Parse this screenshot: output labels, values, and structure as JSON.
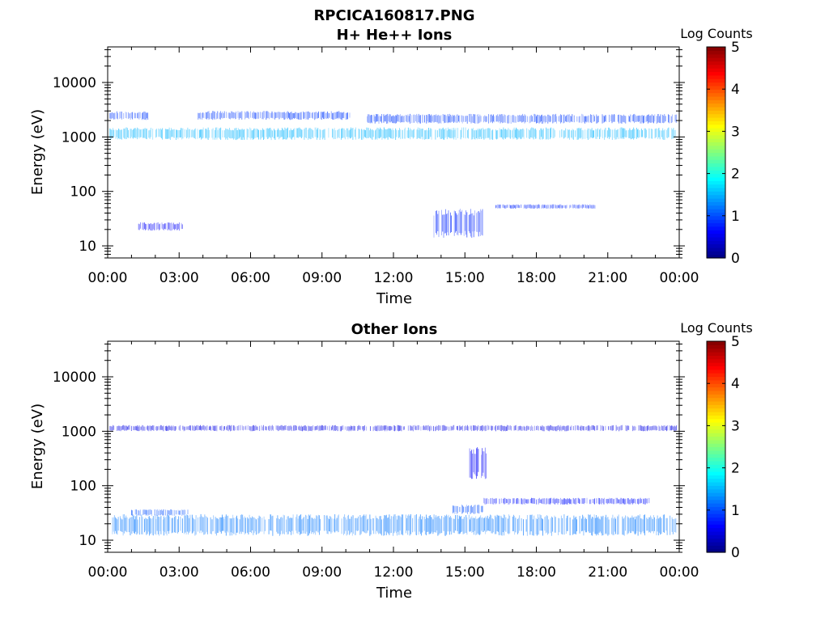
{
  "figure": {
    "title": "RPCICA160817.PNG",
    "background": "#ffffff"
  },
  "chart_data": [
    {
      "type": "heatmap",
      "title": "H+ He++ Ions",
      "xlabel": "Time",
      "ylabel": "Energy (eV)",
      "xticks": [
        "00:00",
        "03:00",
        "06:00",
        "09:00",
        "12:00",
        "15:00",
        "18:00",
        "21:00",
        "00:00"
      ],
      "xlim_hours": [
        0,
        24
      ],
      "yscale": "log",
      "ylim": [
        6,
        45000
      ],
      "yticks": [
        10,
        100,
        1000,
        10000
      ],
      "ytick_labels": [
        "10",
        "100",
        "1000",
        "10000"
      ],
      "colorbar": {
        "label": "Log Counts",
        "range": [
          0,
          5
        ],
        "ticks": [
          "0",
          "1",
          "2",
          "3",
          "4",
          "5"
        ]
      },
      "bands": [
        {
          "hours": [
            0.1,
            23.9
          ],
          "energy_eV": [
            880,
            1500
          ],
          "log_counts": 1.5
        },
        {
          "hours": [
            0.1,
            1.7
          ],
          "energy_eV": [
            2050,
            2950
          ],
          "log_counts": 0.9
        },
        {
          "hours": [
            3.8,
            10.2
          ],
          "energy_eV": [
            2050,
            3000
          ],
          "log_counts": 0.9
        },
        {
          "hours": [
            10.9,
            23.9
          ],
          "energy_eV": [
            1750,
            2650
          ],
          "log_counts": 0.9
        },
        {
          "hours": [
            1.3,
            3.2
          ],
          "energy_eV": [
            19,
            27
          ],
          "log_counts": 0.6
        },
        {
          "hours": [
            13.7,
            15.8
          ],
          "energy_eV": [
            14,
            48
          ],
          "log_counts": 0.8
        },
        {
          "hours": [
            16.3,
            20.5
          ],
          "energy_eV": [
            48,
            58
          ],
          "log_counts": 0.8
        }
      ]
    },
    {
      "type": "heatmap",
      "title": "Other Ions",
      "xlabel": "Time",
      "ylabel": "Energy (eV)",
      "xticks": [
        "00:00",
        "03:00",
        "06:00",
        "09:00",
        "12:00",
        "15:00",
        "18:00",
        "21:00",
        "00:00"
      ],
      "xlim_hours": [
        0,
        24
      ],
      "yscale": "log",
      "ylim": [
        6,
        45000
      ],
      "yticks": [
        10,
        100,
        1000,
        10000
      ],
      "ytick_labels": [
        "10",
        "100",
        "1000",
        "10000"
      ],
      "colorbar": {
        "label": "Log Counts",
        "range": [
          0,
          5
        ],
        "ticks": [
          "0",
          "1",
          "2",
          "3",
          "4",
          "5"
        ]
      },
      "bands": [
        {
          "hours": [
            0.2,
            23.9
          ],
          "energy_eV": [
            12,
            30
          ],
          "log_counts": 1.2
        },
        {
          "hours": [
            1.0,
            3.4
          ],
          "energy_eV": [
            28,
            37
          ],
          "log_counts": 1.0
        },
        {
          "hours": [
            14.5,
            15.8
          ],
          "energy_eV": [
            30,
            45
          ],
          "log_counts": 1.0
        },
        {
          "hours": [
            15.8,
            22.8
          ],
          "energy_eV": [
            45,
            60
          ],
          "log_counts": 0.7
        },
        {
          "hours": [
            0.1,
            23.9
          ],
          "energy_eV": [
            1000,
            1300
          ],
          "log_counts": 0.5
        },
        {
          "hours": [
            15.2,
            15.9
          ],
          "energy_eV": [
            130,
            520
          ],
          "log_counts": 0.6
        }
      ]
    }
  ]
}
